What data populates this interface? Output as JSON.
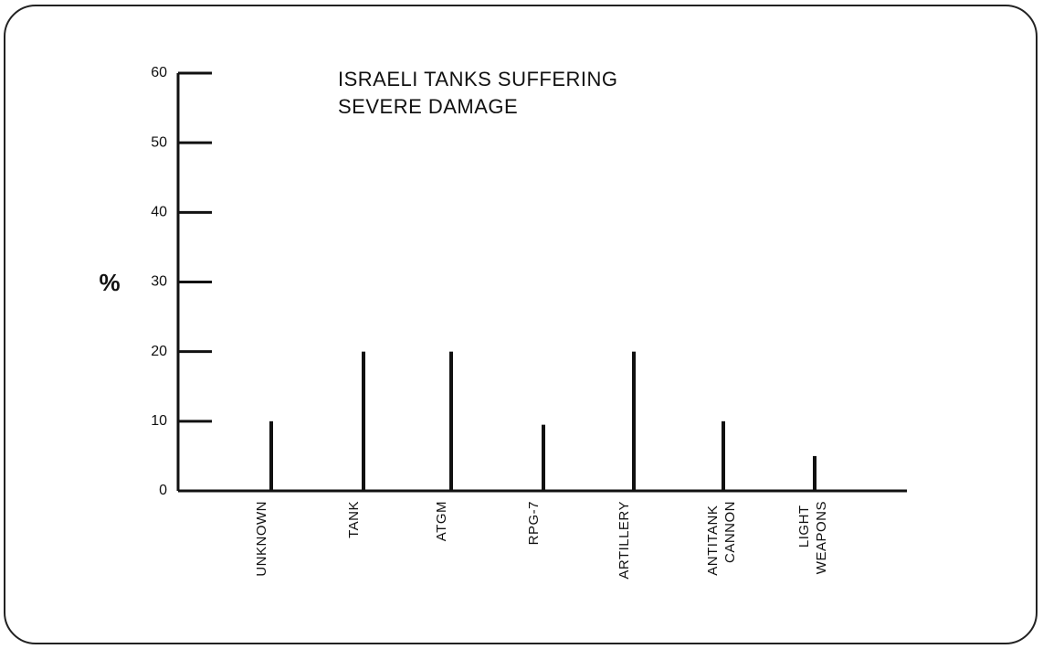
{
  "chart_data": {
    "type": "bar",
    "title": [
      "ISRAELI TANKS SUFFERING",
      "SEVERE DAMAGE"
    ],
    "y_label": "%",
    "categories": [
      "UNKNOWN",
      "TANK",
      "ATGM",
      "RPG-7",
      "ARTILLERY",
      "ANTITANK CANNON",
      "LIGHT WEAPONS"
    ],
    "values": [
      10,
      20,
      20,
      9.5,
      20,
      10,
      5
    ],
    "color": "#111111",
    "ylim": [
      0,
      60
    ],
    "yticks": [
      0,
      10,
      20,
      30,
      40,
      50,
      60
    ]
  }
}
